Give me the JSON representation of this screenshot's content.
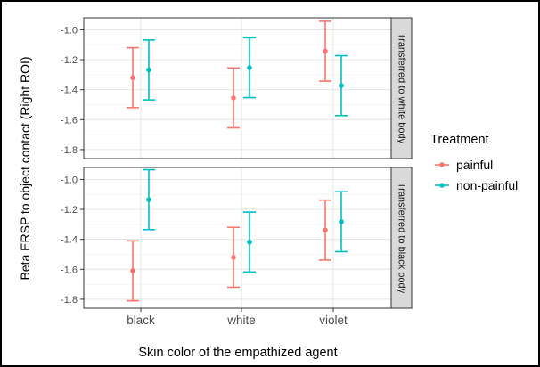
{
  "chart_data": {
    "type": "errorbar",
    "ylabel": "Beta ERSP to object contact (Right ROI)",
    "xlabel": "Skin color of the empathized agent",
    "categories": [
      "black",
      "white",
      "violet"
    ],
    "y_ticks": [
      "-1.0",
      "-1.2",
      "-1.4",
      "-1.6",
      "-1.8"
    ],
    "ylim": [
      -1.86,
      -0.92
    ],
    "grid": true,
    "legend": {
      "title": "Treatment",
      "position": "right",
      "entries": [
        {
          "label": "painful",
          "color": "#F8766D"
        },
        {
          "label": "non-painful",
          "color": "#00BFC4"
        }
      ]
    },
    "panels": [
      {
        "strip_label": "Transferred to white body",
        "series": [
          {
            "name": "painful",
            "mean": [
              -1.32,
              -1.455,
              -1.143
            ],
            "lower": [
              -1.52,
              -1.655,
              -1.343
            ],
            "upper": [
              -1.12,
              -1.255,
              -0.943
            ]
          },
          {
            "name": "non-painful",
            "mean": [
              -1.268,
              -1.253,
              -1.373
            ],
            "lower": [
              -1.468,
              -1.453,
              -1.573
            ],
            "upper": [
              -1.068,
              -1.053,
              -1.173
            ]
          }
        ]
      },
      {
        "strip_label": "Transferred to black body",
        "series": [
          {
            "name": "painful",
            "mean": [
              -1.61,
              -1.52,
              -1.338
            ],
            "lower": [
              -1.81,
              -1.72,
              -1.538
            ],
            "upper": [
              -1.41,
              -1.32,
              -1.138
            ]
          },
          {
            "name": "non-painful",
            "mean": [
              -1.135,
              -1.418,
              -1.282
            ],
            "lower": [
              -1.335,
              -1.618,
              -1.482
            ],
            "upper": [
              -0.935,
              -1.218,
              -1.082
            ]
          }
        ]
      }
    ]
  }
}
